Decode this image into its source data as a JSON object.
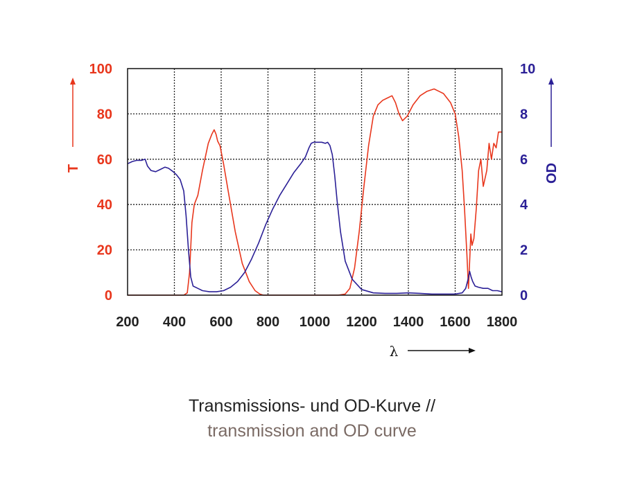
{
  "colors": {
    "transmission": "#e8361c",
    "od": "#2a1f96",
    "frame": "#111111",
    "grid": "#222222",
    "caption_primary": "#222222",
    "caption_secondary": "#7a6a64"
  },
  "caption": {
    "line1": "Transmissions- und OD-Kurve //",
    "line2": "transmission and OD curve"
  },
  "chart_data": {
    "type": "line",
    "title": "",
    "xlabel": "λ",
    "ylabel": "T",
    "y2label": "OD",
    "xlim": [
      200,
      1800
    ],
    "ylim": [
      0,
      100
    ],
    "y2lim": [
      0,
      10
    ],
    "grid": true,
    "legend": "none",
    "x_ticks": [
      "200",
      "400",
      "600",
      "800",
      "1000",
      "1200",
      "1400",
      "1600",
      "1800"
    ],
    "y_ticks": [
      "0",
      "20",
      "40",
      "60",
      "80",
      "100"
    ],
    "y2_ticks": [
      "0",
      "2",
      "4",
      "6",
      "8",
      "10"
    ],
    "series": [
      {
        "axis": "left",
        "color": "#e8361c",
        "x": [
          200,
          440,
          455,
          465,
          475,
          485,
          500,
          520,
          545,
          560,
          570,
          578,
          585,
          595,
          610,
          630,
          660,
          690,
          720,
          745,
          765,
          780,
          800,
          1000,
          1100,
          1130,
          1150,
          1170,
          1190,
          1210,
          1230,
          1250,
          1270,
          1290,
          1310,
          1330,
          1345,
          1360,
          1375,
          1395,
          1420,
          1450,
          1480,
          1510,
          1530,
          1550,
          1580,
          1600,
          1615,
          1630,
          1640,
          1650,
          1657,
          1662,
          1667,
          1672,
          1680,
          1690,
          1700,
          1710,
          1720,
          1735,
          1745,
          1755,
          1765,
          1775,
          1785,
          1800
        ],
        "values": [
          0,
          0,
          1,
          10,
          32,
          40,
          44,
          55,
          67,
          71,
          73,
          71,
          68,
          66,
          58,
          46,
          28,
          14,
          6,
          2,
          0.5,
          0,
          0,
          0,
          0,
          0.5,
          3,
          12,
          28,
          48,
          66,
          79,
          84,
          86,
          87,
          88,
          85,
          80,
          77,
          79,
          84,
          88,
          90,
          91,
          90,
          89,
          85,
          80,
          70,
          55,
          38,
          18,
          3,
          15,
          27,
          22,
          25,
          38,
          55,
          60,
          48,
          55,
          67,
          60,
          67,
          65,
          72,
          72
        ]
      },
      {
        "axis": "right",
        "color": "#2a1f96",
        "x": [
          200,
          220,
          240,
          260,
          275,
          285,
          300,
          320,
          340,
          360,
          375,
          395,
          410,
          425,
          440,
          450,
          460,
          470,
          480,
          500,
          520,
          550,
          580,
          610,
          640,
          670,
          700,
          730,
          760,
          790,
          820,
          850,
          880,
          910,
          940,
          960,
          975,
          985,
          995,
          1010,
          1030,
          1045,
          1055,
          1065,
          1075,
          1085,
          1095,
          1110,
          1130,
          1160,
          1200,
          1250,
          1300,
          1350,
          1400,
          1450,
          1500,
          1550,
          1600,
          1630,
          1645,
          1655,
          1662,
          1668,
          1675,
          1685,
          1700,
          1720,
          1740,
          1760,
          1780,
          1800
        ],
        "values": [
          5.8,
          5.9,
          5.95,
          5.95,
          6.0,
          5.7,
          5.5,
          5.45,
          5.55,
          5.65,
          5.6,
          5.45,
          5.3,
          5.1,
          4.6,
          3.5,
          2.0,
          0.8,
          0.4,
          0.3,
          0.2,
          0.15,
          0.15,
          0.2,
          0.35,
          0.6,
          1.0,
          1.6,
          2.3,
          3.1,
          3.8,
          4.4,
          4.9,
          5.4,
          5.8,
          6.1,
          6.5,
          6.7,
          6.75,
          6.75,
          6.75,
          6.7,
          6.75,
          6.6,
          6.2,
          5.3,
          4.2,
          2.8,
          1.5,
          0.7,
          0.25,
          0.1,
          0.08,
          0.08,
          0.1,
          0.08,
          0.05,
          0.05,
          0.05,
          0.1,
          0.3,
          0.7,
          1.05,
          0.8,
          0.6,
          0.4,
          0.35,
          0.3,
          0.3,
          0.2,
          0.2,
          0.15
        ]
      }
    ]
  }
}
